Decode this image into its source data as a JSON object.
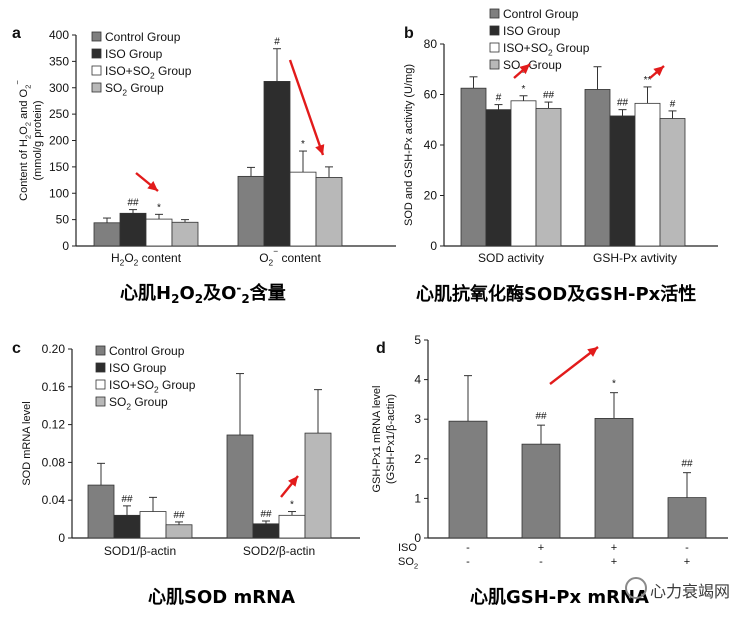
{
  "colors": {
    "control": "#7f7f7f",
    "iso": "#2d2d2d",
    "iso_so2": "#ffffff",
    "so2": "#b8b8b8",
    "arrow": "#e21b1b"
  },
  "panels": [
    {
      "id": "a",
      "label": "a",
      "caption_parts": [
        "心肌H",
        "2",
        "O",
        "2",
        "及O",
        "-",
        "2",
        "含量"
      ],
      "chart_data": {
        "type": "bar",
        "ylabel_lines": [
          "Content of H2O2 and O2−",
          "(mmol/g protein)"
        ],
        "ylim": [
          0,
          400
        ],
        "yticks": [
          0,
          50,
          100,
          150,
          200,
          250,
          300,
          350,
          400
        ],
        "ytick_labels": [
          "0",
          "50",
          "100",
          "150",
          "200",
          "250",
          "300",
          "350",
          "400"
        ],
        "categories": [
          "H2O2 content",
          "O2− content"
        ],
        "legend": [
          "Control Group",
          "ISO Group",
          "ISO+SO2 Group",
          "SO2 Group"
        ],
        "series": [
          {
            "name": "Control Group",
            "values": [
              44,
              132
            ],
            "errors": [
              9,
              17
            ]
          },
          {
            "name": "ISO Group",
            "values": [
              62,
              312
            ],
            "errors": [
              7,
              62
            ]
          },
          {
            "name": "ISO+SO2 Group",
            "values": [
              51,
              140
            ],
            "errors": [
              9,
              40
            ]
          },
          {
            "name": "SO2 Group",
            "values": [
              45,
              130
            ],
            "errors": [
              5,
              20
            ]
          }
        ],
        "annotations": [
          {
            "category": 0,
            "series": 1,
            "text": "##"
          },
          {
            "category": 0,
            "series": 2,
            "text": "*"
          },
          {
            "category": 1,
            "series": 1,
            "text": "#"
          },
          {
            "category": 1,
            "series": 2,
            "text": "*"
          }
        ]
      }
    },
    {
      "id": "b",
      "label": "b",
      "caption_parts": [
        "心肌抗氧化酶SOD及GSH-Px活性"
      ],
      "chart_data": {
        "type": "bar",
        "ylabel_lines": [
          "SOD and GSH-Px activity (U/mg)"
        ],
        "ylim": [
          0,
          80
        ],
        "yticks": [
          0,
          20,
          40,
          60,
          80
        ],
        "ytick_labels": [
          "0",
          "20",
          "40",
          "60",
          "80"
        ],
        "categories": [
          "SOD activity",
          "GSH-Px avtivity"
        ],
        "legend": [
          "Control Group",
          "ISO Group",
          "ISO+SO2 Group",
          "SO2 Group"
        ],
        "series": [
          {
            "name": "Control Group",
            "values": [
              62.5,
              62
            ],
            "errors": [
              4.5,
              9
            ]
          },
          {
            "name": "ISO Group",
            "values": [
              54,
              51.5
            ],
            "errors": [
              2,
              2.5
            ]
          },
          {
            "name": "ISO+SO2 Group",
            "values": [
              57.5,
              56.5
            ],
            "errors": [
              2,
              6.5
            ]
          },
          {
            "name": "SO2 Group",
            "values": [
              54.5,
              50.5
            ],
            "errors": [
              2.5,
              3
            ]
          }
        ],
        "annotations": [
          {
            "category": 0,
            "series": 1,
            "text": "#"
          },
          {
            "category": 0,
            "series": 2,
            "text": "*"
          },
          {
            "category": 0,
            "series": 3,
            "text": "##"
          },
          {
            "category": 1,
            "series": 1,
            "text": "##"
          },
          {
            "category": 1,
            "series": 2,
            "text": "**"
          },
          {
            "category": 1,
            "series": 3,
            "text": "#"
          }
        ]
      }
    },
    {
      "id": "c",
      "label": "c",
      "caption_parts": [
        "心肌SOD mRNA"
      ],
      "chart_data": {
        "type": "bar",
        "ylabel_lines": [
          "SOD mRNA level"
        ],
        "ylim": [
          0,
          0.2
        ],
        "yticks": [
          0,
          0.04,
          0.08,
          0.12,
          0.16,
          0.2
        ],
        "ytick_labels": [
          "0",
          "0.04",
          "0.08",
          "0.12",
          "0.16",
          "0.20"
        ],
        "categories": [
          "SOD1/β-actin",
          "SOD2/β-actin"
        ],
        "legend": [
          "Control Group",
          "ISO Group",
          "ISO+SO2 Group",
          "SO2 Group"
        ],
        "series": [
          {
            "name": "Control Group",
            "values": [
              0.056,
              0.109
            ],
            "errors": [
              0.023,
              0.065
            ]
          },
          {
            "name": "ISO Group",
            "values": [
              0.024,
              0.015
            ],
            "errors": [
              0.01,
              0.003
            ]
          },
          {
            "name": "ISO+SO2 Group",
            "values": [
              0.028,
              0.024
            ],
            "errors": [
              0.015,
              0.004
            ]
          },
          {
            "name": "SO2 Group",
            "values": [
              0.014,
              0.111
            ],
            "errors": [
              0.003,
              0.046
            ]
          }
        ],
        "annotations": [
          {
            "category": 0,
            "series": 1,
            "text": "##"
          },
          {
            "category": 0,
            "series": 3,
            "text": "##"
          },
          {
            "category": 1,
            "series": 1,
            "text": "##"
          },
          {
            "category": 1,
            "series": 2,
            "text": "*"
          }
        ]
      }
    },
    {
      "id": "d",
      "label": "d",
      "caption_parts": [
        "心肌GSH-Px mRNA"
      ],
      "chart_data": {
        "type": "bar",
        "ylabel_lines": [
          "GSH-Px1 mRNA level",
          "(GSH-Px1/β-actin)"
        ],
        "ylim": [
          0,
          5
        ],
        "yticks": [
          0,
          1,
          2,
          3,
          4,
          5
        ],
        "ytick_labels": [
          "0",
          "1",
          "2",
          "3",
          "4",
          "5"
        ],
        "values": [
          2.95,
          2.37,
          3.02,
          1.02
        ],
        "errors": [
          1.15,
          0.48,
          0.65,
          0.63
        ],
        "annotations": [
          "",
          "##",
          "*",
          "##"
        ],
        "row_labels": [
          "ISO",
          "SO2"
        ],
        "rows": [
          [
            "-",
            "+",
            "+",
            "-"
          ],
          [
            "-",
            "-",
            "+",
            "+"
          ]
        ]
      }
    }
  ],
  "watermark": "心力衰竭网"
}
